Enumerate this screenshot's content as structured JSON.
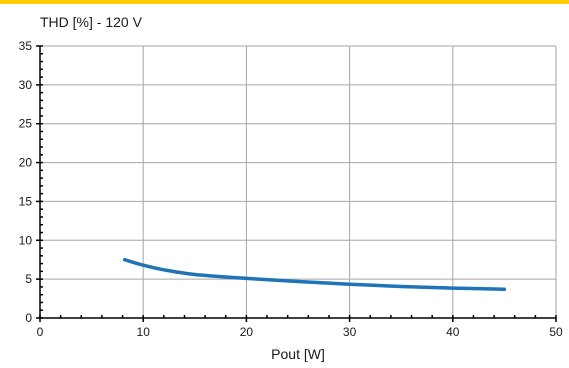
{
  "colors": {
    "accent_bar": "#FFCC00",
    "series_line": "#1F73B7",
    "grid": "#A6A6A6",
    "axis": "#000000",
    "text": "#1A1A1A"
  },
  "chart_data": {
    "type": "line",
    "title": "",
    "ylabel": "THD [%] - 120 V",
    "xlabel": "Pout [W]",
    "xlim": [
      0,
      50
    ],
    "ylim": [
      0,
      35
    ],
    "xticks": [
      0,
      10,
      20,
      30,
      40,
      50
    ],
    "yticks": [
      0,
      5,
      10,
      15,
      20,
      25,
      30,
      35
    ],
    "grid": true,
    "legend": "none",
    "series": [
      {
        "color": "#1F73B7",
        "x": [
          8.2,
          10,
          12,
          15,
          20,
          25,
          30,
          35,
          40,
          45
        ],
        "y": [
          7.5,
          6.8,
          6.2,
          5.6,
          5.1,
          4.7,
          4.35,
          4.05,
          3.85,
          3.7
        ]
      }
    ]
  }
}
